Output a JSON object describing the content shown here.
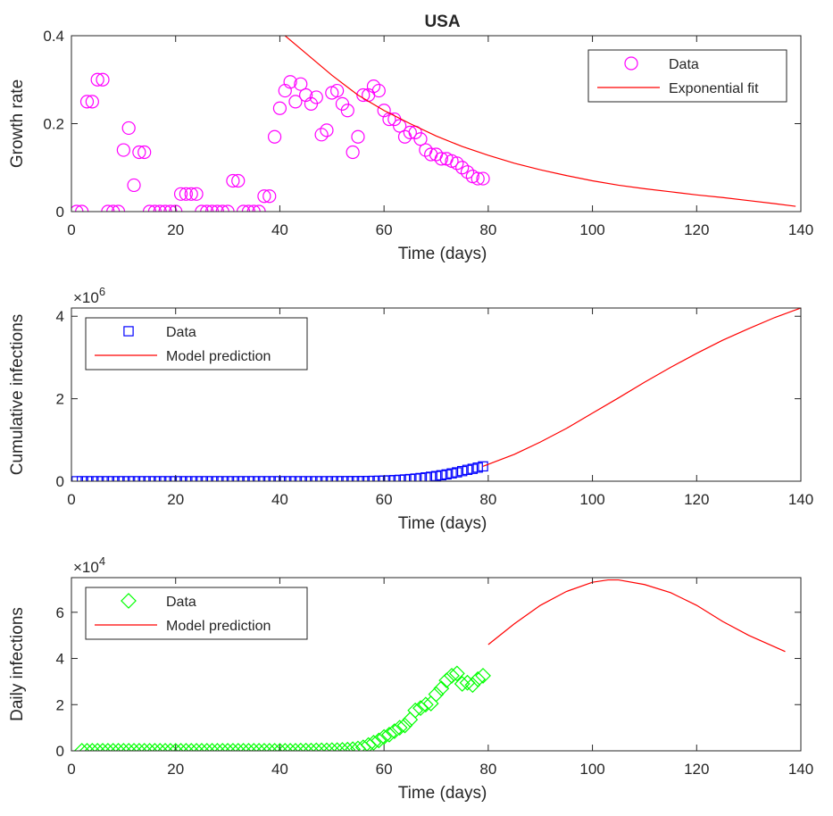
{
  "chart_data": [
    {
      "type": "scatter",
      "title": "USA",
      "xlabel": "Time (days)",
      "ylabel": "Growth rate",
      "xlim": [
        0,
        140
      ],
      "ylim": [
        0,
        0.4
      ],
      "xticks": [
        0,
        20,
        40,
        60,
        80,
        100,
        120,
        140
      ],
      "yticks": [
        0,
        0.2,
        0.4
      ],
      "xtick_labels": [
        "0",
        "20",
        "40",
        "60",
        "80",
        "100",
        "120",
        "140"
      ],
      "ytick_labels": [
        "0",
        "0.2",
        "0.4"
      ],
      "legend_position": "top-right",
      "series": [
        {
          "name": "Data",
          "kind": "marker",
          "marker": "circle",
          "color": "#FF00FF",
          "x": [
            1,
            2,
            3,
            4,
            5,
            6,
            7,
            8,
            9,
            10,
            11,
            12,
            13,
            14,
            15,
            16,
            17,
            18,
            19,
            20,
            21,
            22,
            23,
            24,
            25,
            26,
            27,
            28,
            29,
            30,
            31,
            32,
            33,
            34,
            35,
            36,
            37,
            38,
            39,
            40,
            41,
            42,
            43,
            44,
            45,
            46,
            47,
            48,
            49,
            50,
            51,
            52,
            53,
            54,
            55,
            56,
            57,
            58,
            59,
            60,
            61,
            62,
            63,
            64,
            65,
            66,
            67,
            68,
            69,
            70,
            71,
            72,
            73,
            74,
            75,
            76,
            77,
            78,
            79
          ],
          "y": [
            0,
            0,
            0.25,
            0.25,
            0.3,
            0.3,
            0,
            0,
            0,
            0.14,
            0.19,
            0.06,
            0.135,
            0.135,
            0,
            0,
            0,
            0,
            0,
            0,
            0.04,
            0.04,
            0.04,
            0.04,
            0,
            0,
            0,
            0,
            0,
            0,
            0.07,
            0.07,
            0,
            0,
            0,
            0,
            0.035,
            0.035,
            0.17,
            0.235,
            0.275,
            0.295,
            0.25,
            0.29,
            0.265,
            0.245,
            0.26,
            0.175,
            0.185,
            0.27,
            0.275,
            0.245,
            0.23,
            0.135,
            0.17,
            0.265,
            0.265,
            0.285,
            0.275,
            0.23,
            0.21,
            0.21,
            0.195,
            0.17,
            0.18,
            0.18,
            0.165,
            0.14,
            0.13,
            0.13,
            0.12,
            0.12,
            0.115,
            0.11,
            0.1,
            0.09,
            0.08,
            0.075,
            0.075
          ]
        },
        {
          "name": "Exponential fit",
          "kind": "line",
          "color": "#FF0000",
          "x": [
            41,
            45,
            50,
            55,
            60,
            65,
            70,
            75,
            80,
            85,
            90,
            95,
            100,
            105,
            110,
            115,
            120,
            125,
            130,
            135,
            139
          ],
          "y": [
            0.4,
            0.36,
            0.31,
            0.265,
            0.23,
            0.2,
            0.172,
            0.148,
            0.128,
            0.11,
            0.095,
            0.082,
            0.07,
            0.06,
            0.052,
            0.045,
            0.038,
            0.032,
            0.025,
            0.018,
            0.012
          ]
        }
      ]
    },
    {
      "type": "scatter",
      "title": "",
      "xlabel": "Time (days)",
      "ylabel": "Cumulative infections",
      "y_exponent": "6",
      "xlim": [
        0,
        140
      ],
      "ylim": [
        0,
        4.2
      ],
      "xticks": [
        0,
        20,
        40,
        60,
        80,
        100,
        120,
        140
      ],
      "yticks": [
        0,
        2,
        4
      ],
      "xtick_labels": [
        "0",
        "20",
        "40",
        "60",
        "80",
        "100",
        "120",
        "140"
      ],
      "ytick_labels": [
        "0",
        "2",
        "4"
      ],
      "legend_position": "top-left",
      "series": [
        {
          "name": "Data",
          "kind": "marker",
          "marker": "square",
          "color": "#0000FF",
          "x": [
            1,
            2,
            3,
            4,
            5,
            6,
            7,
            8,
            9,
            10,
            11,
            12,
            13,
            14,
            15,
            16,
            17,
            18,
            19,
            20,
            21,
            22,
            23,
            24,
            25,
            26,
            27,
            28,
            29,
            30,
            31,
            32,
            33,
            34,
            35,
            36,
            37,
            38,
            39,
            40,
            41,
            42,
            43,
            44,
            45,
            46,
            47,
            48,
            49,
            50,
            51,
            52,
            53,
            54,
            55,
            56,
            57,
            58,
            59,
            60,
            61,
            62,
            63,
            64,
            65,
            66,
            67,
            68,
            69,
            70,
            71,
            72,
            73,
            74,
            75,
            76,
            77,
            78,
            79
          ],
          "y": [
            0,
            0,
            0,
            0,
            0,
            0,
            0,
            0,
            0,
            0,
            0,
            0,
            0,
            0,
            0,
            0,
            0,
            0,
            0,
            0,
            0,
            0,
            0,
            0,
            0,
            0,
            0,
            0,
            0,
            0,
            0,
            0,
            0,
            0,
            0,
            0,
            0,
            0,
            0,
            0,
            0,
            0,
            0,
            0,
            0,
            0,
            0,
            0,
            0,
            0.001,
            0.001,
            0.002,
            0.002,
            0.003,
            0.004,
            0.005,
            0.007,
            0.009,
            0.012,
            0.016,
            0.021,
            0.027,
            0.034,
            0.043,
            0.053,
            0.064,
            0.077,
            0.092,
            0.108,
            0.125,
            0.145,
            0.165,
            0.19,
            0.215,
            0.245,
            0.275,
            0.3,
            0.33,
            0.36
          ]
        },
        {
          "name": "Model prediction",
          "kind": "line",
          "color": "#FF0000",
          "x": [
            79,
            85,
            90,
            95,
            100,
            105,
            110,
            115,
            120,
            125,
            130,
            135,
            140
          ],
          "y": [
            0.36,
            0.65,
            0.95,
            1.28,
            1.65,
            2.02,
            2.4,
            2.76,
            3.1,
            3.42,
            3.7,
            3.97,
            4.2
          ]
        }
      ]
    },
    {
      "type": "scatter",
      "title": "",
      "xlabel": "Time (days)",
      "ylabel": "Daily infections",
      "y_exponent": "4",
      "xlim": [
        0,
        140
      ],
      "ylim": [
        0,
        7.5
      ],
      "xticks": [
        0,
        20,
        40,
        60,
        80,
        100,
        120,
        140
      ],
      "yticks": [
        0,
        2,
        4,
        6
      ],
      "xtick_labels": [
        "0",
        "20",
        "40",
        "60",
        "80",
        "100",
        "120",
        "140"
      ],
      "ytick_labels": [
        "0",
        "2",
        "4",
        "6"
      ],
      "legend_position": "top-left",
      "series": [
        {
          "name": "Data",
          "kind": "marker",
          "marker": "diamond",
          "color": "#00FF00",
          "x": [
            2,
            3,
            4,
            5,
            6,
            7,
            8,
            9,
            10,
            11,
            12,
            13,
            14,
            15,
            16,
            17,
            18,
            19,
            20,
            21,
            22,
            23,
            24,
            25,
            26,
            27,
            28,
            29,
            30,
            31,
            32,
            33,
            34,
            35,
            36,
            37,
            38,
            39,
            40,
            41,
            42,
            43,
            44,
            45,
            46,
            47,
            48,
            49,
            50,
            51,
            52,
            53,
            54,
            55,
            56,
            57,
            58,
            59,
            60,
            61,
            62,
            63,
            64,
            65,
            66,
            67,
            68,
            69,
            70,
            71,
            72,
            73,
            74,
            75,
            76,
            77,
            78,
            79
          ],
          "y": [
            0,
            0,
            0,
            0,
            0,
            0,
            0,
            0,
            0,
            0,
            0,
            0,
            0,
            0,
            0,
            0,
            0,
            0,
            0,
            0,
            0,
            0,
            0,
            0,
            0,
            0,
            0,
            0,
            0,
            0,
            0,
            0,
            0,
            0,
            0,
            0,
            0,
            0,
            0,
            0,
            0,
            0,
            0.01,
            0.01,
            0.01,
            0.02,
            0.02,
            0.02,
            0.03,
            0.03,
            0.04,
            0.05,
            0.07,
            0.1,
            0.15,
            0.25,
            0.35,
            0.45,
            0.6,
            0.7,
            0.85,
            1.0,
            1.1,
            1.35,
            1.75,
            1.85,
            2.0,
            2.05,
            2.45,
            2.7,
            3.05,
            3.25,
            3.35,
            2.9,
            2.95,
            2.85,
            3.1,
            3.25
          ]
        },
        {
          "name": "Model prediction",
          "kind": "line",
          "color": "#FF0000",
          "x": [
            80,
            85,
            90,
            95,
            100,
            103,
            105,
            110,
            115,
            120,
            125,
            130,
            137
          ],
          "y": [
            4.6,
            5.5,
            6.3,
            6.9,
            7.3,
            7.4,
            7.4,
            7.2,
            6.85,
            6.3,
            5.6,
            5.0,
            4.3
          ]
        }
      ]
    }
  ]
}
